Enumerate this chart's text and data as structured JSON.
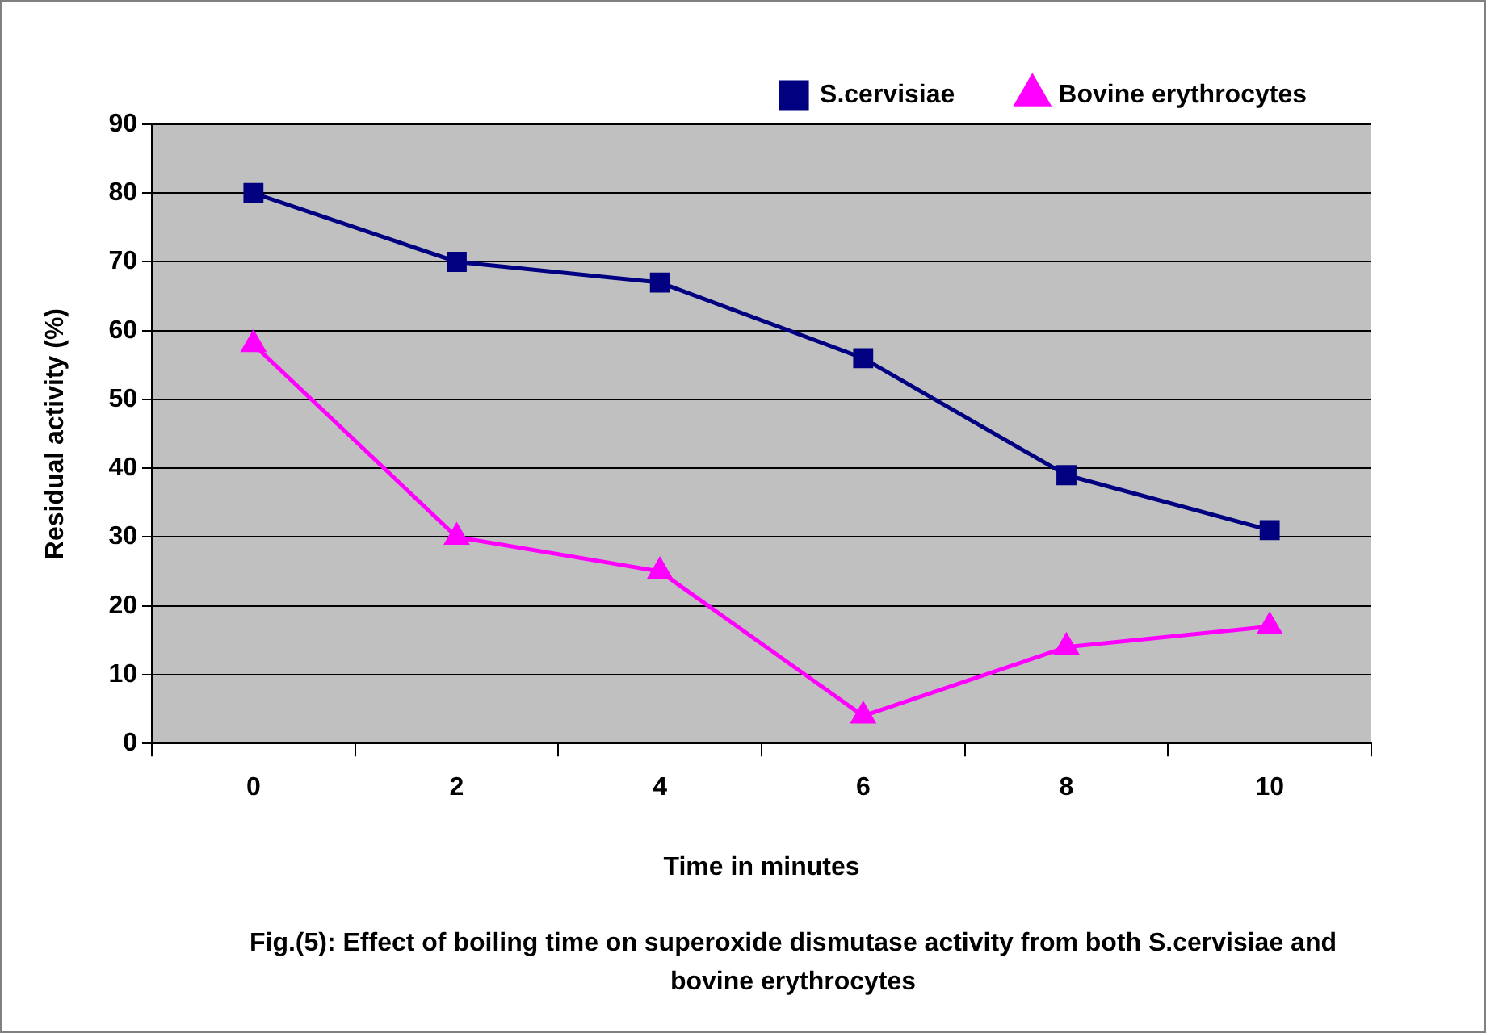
{
  "chart_data": {
    "type": "line",
    "xlabel": "Time in minutes",
    "ylabel": "Residual activity (%)",
    "categories": [
      "0",
      "2",
      "4",
      "6",
      "8",
      "10"
    ],
    "series": [
      {
        "name": "S.cervisiae",
        "color": "#000080",
        "marker": "square",
        "values": [
          80,
          70,
          67,
          56,
          39,
          31
        ]
      },
      {
        "name": "Bovine erythrocytes",
        "color": "#ff00ff",
        "marker": "triangle",
        "values": [
          58,
          30,
          25,
          4,
          14,
          17
        ]
      }
    ],
    "ylim": [
      0,
      90
    ],
    "yticks": [
      0,
      10,
      20,
      30,
      40,
      50,
      60,
      70,
      80,
      90
    ],
    "grid": "y",
    "legend": "top right",
    "line_style": "solid",
    "annotations": [
      "Fig.(5): Effect of boiling time on superoxide dismutase activity from both S.cervisiae and bovine erythrocytes"
    ]
  }
}
